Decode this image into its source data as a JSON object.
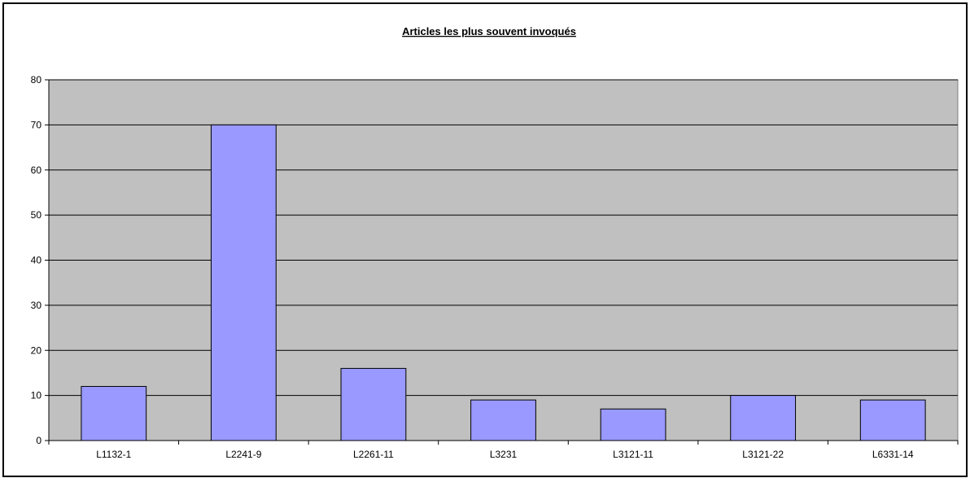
{
  "chart_data": {
    "type": "bar",
    "title": "Articles les plus souvent invoqués",
    "xlabel": "",
    "ylabel": "",
    "categories": [
      "L1132-1",
      "L2241-9",
      "L2261-11",
      "L3231",
      "L3121-11",
      "L3121-22",
      "L6331-14"
    ],
    "values": [
      12,
      70,
      16,
      9,
      7,
      10,
      9
    ],
    "ylim": [
      0,
      80
    ],
    "yticks": [
      0,
      10,
      20,
      30,
      40,
      50,
      60,
      70,
      80
    ],
    "grid": true,
    "legend": "none",
    "colors": {
      "bar_fill": "#9999ff",
      "bar_stroke": "#000000",
      "plot_background": "#c0c0c0",
      "gridline": "#000000"
    }
  }
}
